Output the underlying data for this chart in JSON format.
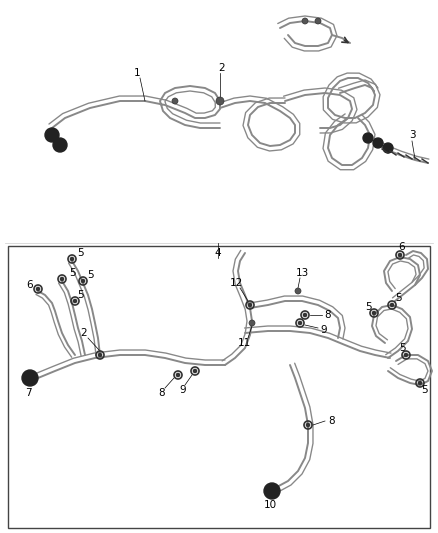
{
  "bg_color": "#ffffff",
  "line_color": "#888888",
  "dark_color": "#333333",
  "figsize": [
    4.38,
    5.33
  ],
  "dpi": 100,
  "lw_tube": 1.4,
  "lw_thin": 0.9
}
